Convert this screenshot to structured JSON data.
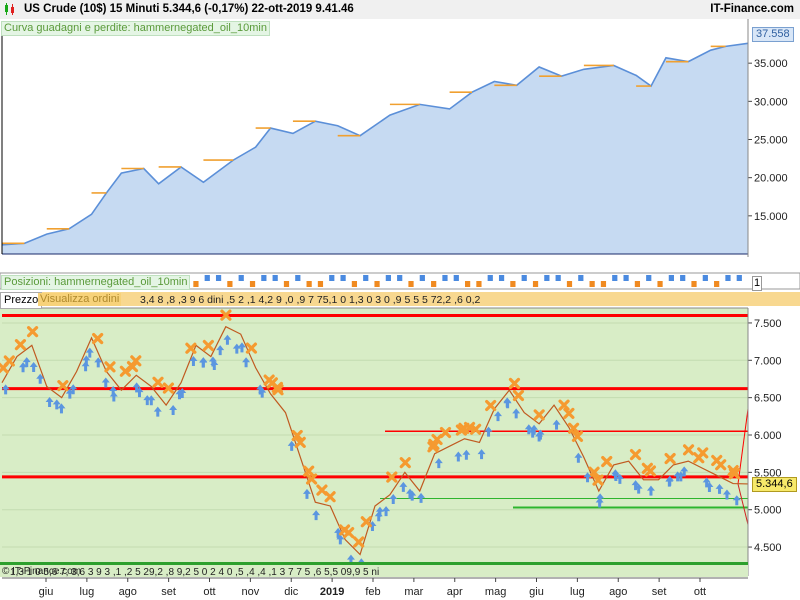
{
  "header": {
    "title": "US Crude (10$)   15 Minuti   5.344,6 (-0,17%)   22-ott-2019 9.41.46",
    "brand": "IT-Finance.com"
  },
  "panels": {
    "equity_label": "Curva guadagni e perdite: hammernegated_oil_10min",
    "positions_label": "Posizioni: hammernegated_oil_10min",
    "price_tab": "Prezzo",
    "vis_tab": "Visualizza ordini",
    "watermark": "© IT-Finance.com"
  },
  "order_strip_text": "3,4   8  ,8  ,3 9 6        dini ,5 2      ,1   4,2 9      ,0   ,9  7 75,1 0     1,3 0      3 0  ,9 5 5 5        72,2 ,6 0,2",
  "bottom_strip_text": "1,3 1 0 5,6   7,     3,6       3 9 3 ,1 ,2 5      29,2       ,8   9,2   5   0   2 4 0        ,5 ,4     ,4    ,1 3 7 7  5 ,6       5,5    09,9 5   ni",
  "badges": {
    "equity_last": "37.558",
    "price_last": "5.344,6",
    "pos_mark": "1"
  },
  "colors": {
    "equity_fill": "#c6daf2",
    "equity_line": "#5b8fd8",
    "equity_step": "#f0a030",
    "price_bg": "#d8edc6",
    "support_red": "#ff0000",
    "support_green": "#2db52d",
    "buy_arrow": "#5b96e0",
    "sell_cross": "#f59a30"
  },
  "chart_data": [
    {
      "type": "area",
      "name": "equity",
      "ylim": [
        10000,
        40000
      ],
      "yticks": [
        "15.000",
        "20.000",
        "25.000",
        "30.000",
        "35.000"
      ],
      "ytick_values": [
        15000,
        20000,
        25000,
        30000,
        35000
      ],
      "x": [
        0,
        0.03,
        0.06,
        0.09,
        0.12,
        0.14,
        0.16,
        0.19,
        0.21,
        0.24,
        0.27,
        0.31,
        0.34,
        0.36,
        0.39,
        0.42,
        0.45,
        0.48,
        0.52,
        0.56,
        0.6,
        0.63,
        0.66,
        0.69,
        0.72,
        0.75,
        0.78,
        0.82,
        0.85,
        0.87,
        0.89,
        0.92,
        0.95,
        0.97,
        1.0
      ],
      "values": [
        11200,
        11400,
        12600,
        13300,
        15200,
        18000,
        20600,
        21200,
        19200,
        21400,
        19400,
        22300,
        24000,
        26500,
        25800,
        27400,
        26800,
        25500,
        28200,
        29600,
        29000,
        31200,
        32600,
        32100,
        34500,
        33300,
        34200,
        34700,
        33400,
        32000,
        35700,
        35200,
        36700,
        37200,
        37600
      ]
    },
    {
      "type": "bar",
      "name": "positions",
      "categories": [
        "1",
        "2",
        "3",
        "4",
        "5",
        "6",
        "7",
        "8",
        "9",
        "10",
        "11",
        "12",
        "13",
        "14",
        "15",
        "16",
        "17",
        "18",
        "19",
        "20",
        "21",
        "22",
        "23",
        "24",
        "25",
        "26",
        "27",
        "28",
        "29",
        "30",
        "31",
        "32",
        "33",
        "34",
        "35",
        "36",
        "37",
        "38",
        "39",
        "40",
        "41",
        "42",
        "43",
        "44",
        "45",
        "46",
        "47",
        "48",
        "49",
        "50"
      ],
      "values": [
        1,
        -1,
        1,
        1,
        -1,
        1,
        -1,
        1,
        1,
        -1,
        1,
        -1,
        -1,
        1,
        1,
        -1,
        1,
        -1,
        1,
        1,
        -1,
        1,
        -1,
        1,
        1,
        -1,
        -1,
        1,
        1,
        -1,
        1,
        -1,
        1,
        1,
        -1,
        1,
        -1,
        -1,
        1,
        1,
        -1,
        1,
        -1,
        1,
        1,
        -1,
        1,
        -1,
        1,
        1
      ]
    },
    {
      "type": "line",
      "name": "US Crude",
      "ylim": [
        4300,
        7700
      ],
      "yticks": [
        "7.500",
        "7.000",
        "6.500",
        "6.000",
        "5.500",
        "5.000",
        "4.500"
      ],
      "ytick_values": [
        7500,
        7000,
        6500,
        6000,
        5500,
        5000,
        4500
      ],
      "xticks": [
        "giu",
        "lug",
        "ago",
        "set",
        "ott",
        "nov",
        "dic",
        "2019",
        "feb",
        "mar",
        "apr",
        "mag",
        "giu",
        "lug",
        "ago",
        "set",
        "ott"
      ],
      "x": [
        0,
        0.02,
        0.04,
        0.06,
        0.08,
        0.1,
        0.12,
        0.14,
        0.16,
        0.18,
        0.2,
        0.22,
        0.24,
        0.26,
        0.28,
        0.3,
        0.32,
        0.34,
        0.36,
        0.38,
        0.4,
        0.42,
        0.44,
        0.46,
        0.48,
        0.5,
        0.52,
        0.54,
        0.56,
        0.58,
        0.6,
        0.62,
        0.64,
        0.66,
        0.68,
        0.7,
        0.72,
        0.74,
        0.76,
        0.78,
        0.8,
        0.82,
        0.84,
        0.86,
        0.88,
        0.9,
        0.92,
        0.94,
        0.96,
        0.98,
        1.0
      ],
      "values": [
        6700,
        7050,
        7200,
        6650,
        6500,
        6850,
        7300,
        6850,
        6600,
        6800,
        6650,
        6400,
        6700,
        7200,
        7050,
        7450,
        7350,
        6900,
        6550,
        6300,
        5700,
        5100,
        5050,
        4600,
        4400,
        5050,
        5200,
        5500,
        5250,
        5750,
        5850,
        5950,
        5900,
        6350,
        6600,
        6300,
        6150,
        6400,
        6100,
        5700,
        5250,
        5600,
        5650,
        5400,
        5400,
        5600,
        5650,
        5550,
        5450,
        5350,
        5344.6
      ]
    }
  ],
  "levels": {
    "red": [
      7600,
      6620,
      6050,
      5440
    ],
    "green": [
      5150,
      5030
    ]
  }
}
